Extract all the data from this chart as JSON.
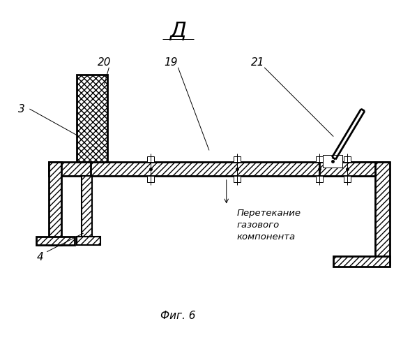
{
  "title": "Д",
  "fig_label": "Фиг. 6",
  "annotation_text": "Перетекание\nгазового\nкомпонента",
  "bg_color": "#ffffff",
  "line_color": "#000000"
}
